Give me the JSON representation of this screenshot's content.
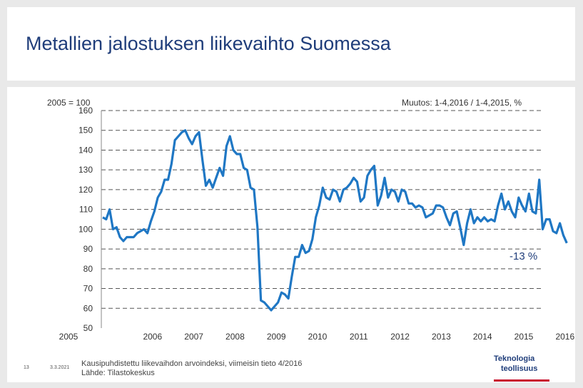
{
  "title": "Metallien jalostuksen liikevaihto Suomessa",
  "base_label": "2005 = 100",
  "change_label": "Muutos: 1-4,2016 / 1-4,2015, %",
  "change_value": "-13 %",
  "footnote_line1": "Kausipuhdistettu liikevaihdon arvoindeksi, viimeisin tieto 4/2016",
  "footnote_line2": "Lähde: Tilastokeskus",
  "slide_number": "13",
  "slide_date": "3.3.2021",
  "logo_line1": "Teknologia",
  "logo_line2": "teollisuus",
  "colors": {
    "series": "#1f77c4",
    "title": "#1f3d7a",
    "grid": "#555555"
  },
  "chart_data": {
    "type": "line",
    "title": "",
    "xlabel": "",
    "ylabel": "",
    "ylim": [
      50,
      160
    ],
    "y_ticks": [
      160,
      150,
      140,
      130,
      120,
      110,
      100,
      90,
      80,
      70,
      60,
      50
    ],
    "x_ticks": [
      "2005",
      "2006",
      "2007",
      "2008",
      "2009",
      "2010",
      "2011",
      "2012",
      "2013",
      "2014",
      "2015",
      "2016"
    ],
    "grid": "horizontal dashed",
    "series": [
      {
        "x": [
          "2005-01",
          "2005-02",
          "2005-03",
          "2005-04",
          "2005-05",
          "2005-06",
          "2005-07",
          "2005-08",
          "2005-09",
          "2005-10",
          "2005-11",
          "2005-12",
          "2006-01",
          "2006-02",
          "2006-03",
          "2006-04",
          "2006-05",
          "2006-06",
          "2006-07",
          "2006-08",
          "2006-09",
          "2006-10",
          "2006-11",
          "2006-12",
          "2007-01",
          "2007-02",
          "2007-03",
          "2007-04",
          "2007-05",
          "2007-06",
          "2007-07",
          "2007-08",
          "2007-09",
          "2007-10",
          "2007-11",
          "2007-12",
          "2008-01",
          "2008-02",
          "2008-03",
          "2008-04",
          "2008-05",
          "2008-06",
          "2008-07",
          "2008-08",
          "2008-09",
          "2008-10",
          "2008-11",
          "2008-12",
          "2009-01",
          "2009-02",
          "2009-03",
          "2009-04",
          "2009-05",
          "2009-06",
          "2009-07",
          "2009-08",
          "2009-09",
          "2009-10",
          "2009-11",
          "2009-12",
          "2010-01",
          "2010-02",
          "2010-03",
          "2010-04",
          "2010-05",
          "2010-06",
          "2010-07",
          "2010-08",
          "2010-09",
          "2010-10",
          "2010-11",
          "2010-12",
          "2011-01",
          "2011-02",
          "2011-03",
          "2011-04",
          "2011-05",
          "2011-06",
          "2011-07",
          "2011-08",
          "2011-09",
          "2011-10",
          "2011-11",
          "2011-12",
          "2012-01",
          "2012-02",
          "2012-03",
          "2012-04",
          "2012-05",
          "2012-06",
          "2012-07",
          "2012-08",
          "2012-09",
          "2012-10",
          "2012-11",
          "2012-12",
          "2013-01",
          "2013-02",
          "2013-03",
          "2013-04",
          "2013-05",
          "2013-06",
          "2013-07",
          "2013-08",
          "2013-09",
          "2013-10",
          "2013-11",
          "2013-12",
          "2014-01",
          "2014-02",
          "2014-03",
          "2014-04",
          "2014-05",
          "2014-06",
          "2014-07",
          "2014-08",
          "2014-09",
          "2014-10",
          "2014-11",
          "2014-12",
          "2015-01",
          "2015-02",
          "2015-03",
          "2015-04",
          "2015-05",
          "2015-06",
          "2015-07",
          "2015-08",
          "2015-09",
          "2015-10",
          "2015-11",
          "2015-12",
          "2016-01",
          "2016-02",
          "2016-03",
          "2016-04"
        ],
        "y": [
          106,
          105,
          110,
          100,
          101,
          96,
          94,
          96,
          96,
          96,
          98,
          99,
          100,
          98,
          104,
          109,
          116,
          119,
          125,
          125,
          133,
          145,
          147,
          149,
          150,
          146,
          143,
          147,
          149,
          135,
          122,
          125,
          121,
          126,
          131,
          127,
          142,
          147,
          140,
          138,
          138,
          131,
          130,
          121,
          120,
          101,
          64,
          63,
          61,
          59,
          61,
          63,
          68,
          67,
          65,
          76,
          86,
          86,
          92,
          88,
          89,
          95,
          106,
          112,
          121,
          116,
          115,
          120,
          119,
          114,
          120,
          121,
          123,
          126,
          124,
          114,
          116,
          127,
          130,
          132,
          112,
          117,
          126,
          116,
          120,
          119,
          114,
          120,
          119,
          113,
          113,
          111,
          112,
          111,
          106,
          107,
          108,
          112,
          112,
          111,
          106,
          102,
          108,
          109,
          101,
          92,
          103,
          110,
          103,
          106,
          104,
          106,
          104,
          105,
          104,
          112,
          118,
          110,
          114,
          109,
          106,
          116,
          112,
          109,
          118,
          109,
          108,
          125,
          100,
          105,
          105,
          99,
          98,
          103,
          97,
          93
        ]
      }
    ]
  }
}
